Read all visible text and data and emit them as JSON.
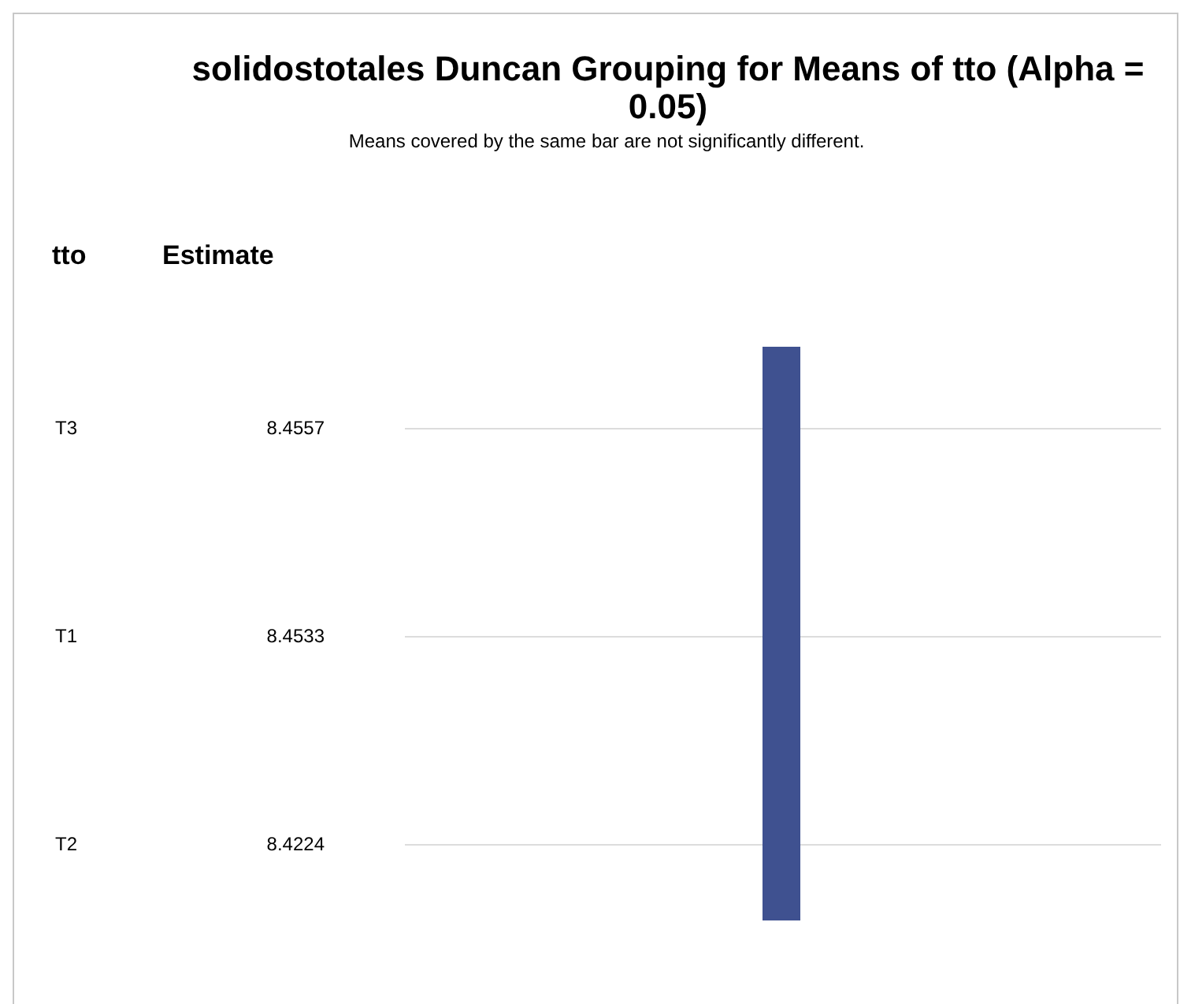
{
  "chart_data": {
    "type": "other",
    "title": "solidostotales Duncan Grouping for Means of tto (Alpha = 0.05)",
    "subtitle": "Means covered by the same bar are not significantly different.",
    "ylabel": "tto",
    "annotations": [
      "Estimate"
    ],
    "categories": [
      "T3",
      "T1",
      "T2"
    ],
    "values": [
      8.4557,
      8.4533,
      8.4224
    ],
    "data_labels": true,
    "color": "#3f5190"
  }
}
